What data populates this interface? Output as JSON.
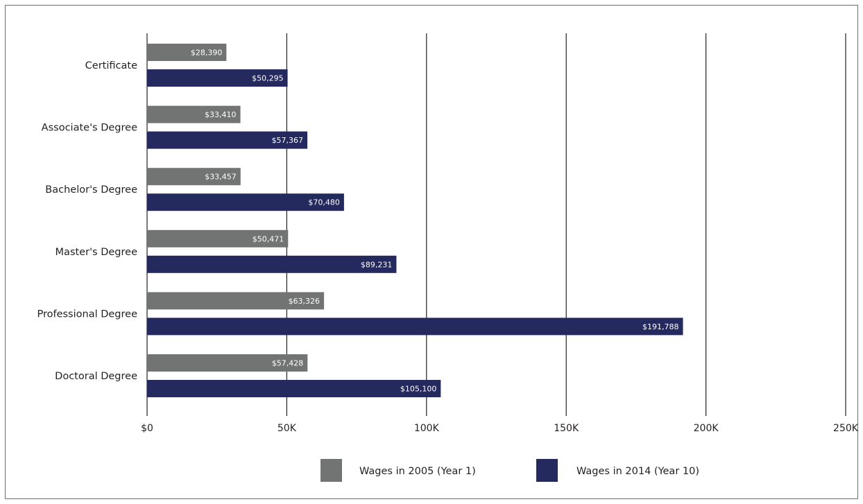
{
  "chart_data": {
    "type": "bar",
    "orientation": "horizontal",
    "categories": [
      "Certificate",
      "Associate's Degree",
      "Bachelor's Degree",
      "Master's Degree",
      "Professional Degree",
      "Doctoral Degree"
    ],
    "series": [
      {
        "name": "Wages in 2005 (Year 1)",
        "color": "#717472",
        "values": [
          28390,
          33410,
          33457,
          50471,
          63326,
          57428
        ],
        "value_labels": [
          "$28,390",
          "$33,410",
          "$33,457",
          "$50,471",
          "$63,326",
          "$57,428"
        ]
      },
      {
        "name": "Wages in 2014 (Year 10)",
        "color": "#252a5e",
        "values": [
          50295,
          57367,
          70480,
          89231,
          191788,
          105100
        ],
        "value_labels": [
          "$50,295",
          "$57,367",
          "$70,480",
          "$89,231",
          "$191,788",
          "$105,100"
        ]
      }
    ],
    "x_ticks": [
      0,
      50000,
      100000,
      150000,
      200000,
      250000
    ],
    "x_tick_labels": [
      "$0",
      "50K",
      "100K",
      "150K",
      "200K",
      "250K"
    ],
    "xlim": [
      0,
      250000
    ],
    "grid": "vertical",
    "legend_position": "bottom",
    "title": "",
    "xlabel": "",
    "ylabel": ""
  }
}
